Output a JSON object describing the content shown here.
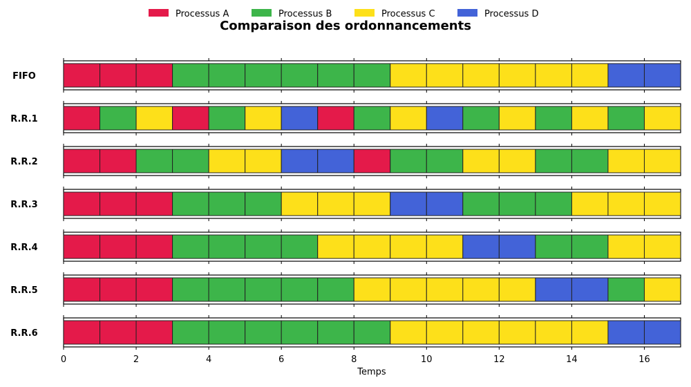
{
  "chart_data": {
    "type": "gantt",
    "title": "Comparaison des ordonnancements",
    "xlabel": "Temps",
    "xlim": [
      0,
      17
    ],
    "xticks": [
      0,
      2,
      4,
      6,
      8,
      10,
      12,
      14,
      16
    ],
    "legend_position": "top-center",
    "legend": [
      {
        "key": "A",
        "name": "Processus A",
        "color": "#e41a4a"
      },
      {
        "key": "B",
        "name": "Processus B",
        "color": "#3db54a"
      },
      {
        "key": "C",
        "name": "Processus C",
        "color": "#fde01a"
      },
      {
        "key": "D",
        "name": "Processus D",
        "color": "#4363d8"
      }
    ],
    "schedules": [
      {
        "label": "FIFO",
        "sequence": [
          "A",
          "A",
          "A",
          "B",
          "B",
          "B",
          "B",
          "B",
          "B",
          "C",
          "C",
          "C",
          "C",
          "C",
          "C",
          "D",
          "D"
        ]
      },
      {
        "label": "R.R.1",
        "sequence": [
          "A",
          "B",
          "C",
          "A",
          "B",
          "C",
          "D",
          "A",
          "B",
          "C",
          "D",
          "B",
          "C",
          "B",
          "C",
          "B",
          "C"
        ]
      },
      {
        "label": "R.R.2",
        "sequence": [
          "A",
          "A",
          "B",
          "B",
          "C",
          "C",
          "D",
          "D",
          "A",
          "B",
          "B",
          "C",
          "C",
          "B",
          "B",
          "C",
          "C"
        ]
      },
      {
        "label": "R.R.3",
        "sequence": [
          "A",
          "A",
          "A",
          "B",
          "B",
          "B",
          "C",
          "C",
          "C",
          "D",
          "D",
          "B",
          "B",
          "B",
          "C",
          "C",
          "C"
        ]
      },
      {
        "label": "R.R.4",
        "sequence": [
          "A",
          "A",
          "A",
          "B",
          "B",
          "B",
          "B",
          "C",
          "C",
          "C",
          "C",
          "D",
          "D",
          "B",
          "B",
          "C",
          "C"
        ]
      },
      {
        "label": "R.R.5",
        "sequence": [
          "A",
          "A",
          "A",
          "B",
          "B",
          "B",
          "B",
          "B",
          "C",
          "C",
          "C",
          "C",
          "C",
          "D",
          "D",
          "B",
          "C"
        ]
      },
      {
        "label": "R.R.6",
        "sequence": [
          "A",
          "A",
          "A",
          "B",
          "B",
          "B",
          "B",
          "B",
          "B",
          "C",
          "C",
          "C",
          "C",
          "C",
          "C",
          "D",
          "D"
        ]
      }
    ]
  }
}
